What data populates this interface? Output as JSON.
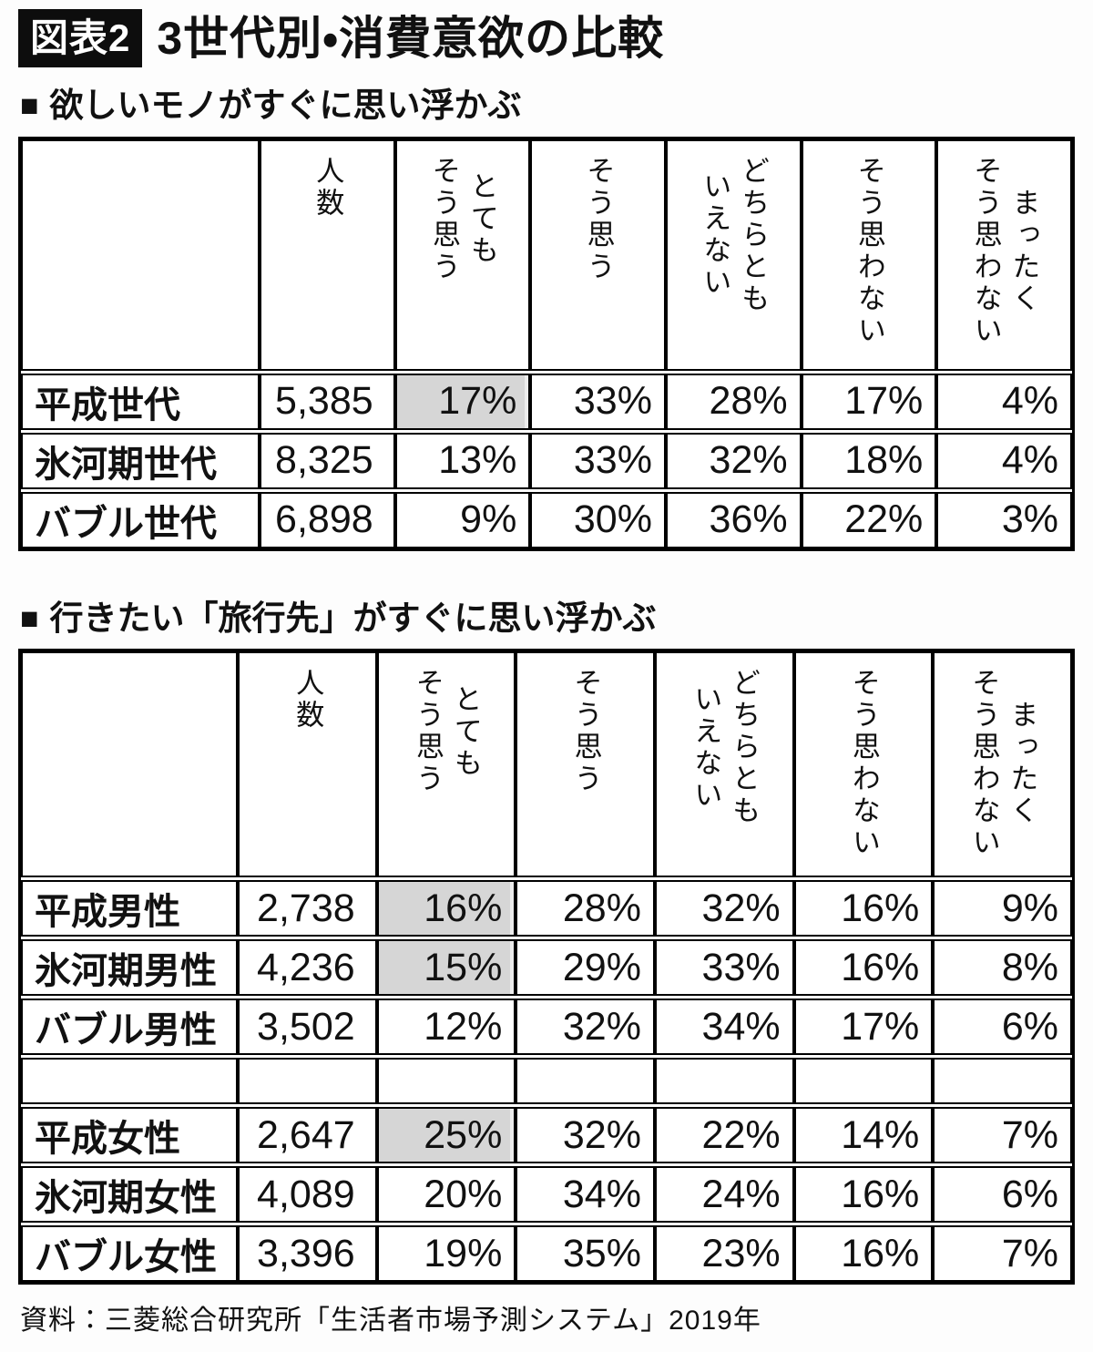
{
  "header": {
    "tag": "図表2",
    "title": "3世代別・消費意欲の比較",
    "bullet": "■"
  },
  "headers_display": [
    "人数",
    "とても\nそう思う",
    "そう思う",
    "どちらとも\nいえない",
    "そう思わない",
    "まったく\nそう思わない"
  ],
  "chart_data": [
    {
      "type": "table",
      "title": "欲しいモノがすぐに思い浮かぶ",
      "columns": [
        "人数",
        "とてもそう思う",
        "そう思う",
        "どちらともいえない",
        "そう思わない",
        "まったくそう思わない"
      ],
      "rows": [
        [
          "平成世代",
          "5,385",
          "17%",
          "33%",
          "28%",
          "17%",
          "4%"
        ],
        [
          "氷河期世代",
          "8,325",
          "13%",
          "33%",
          "32%",
          "18%",
          "4%"
        ],
        [
          "バブル世代",
          "6,898",
          "9%",
          "30%",
          "36%",
          "22%",
          "3%"
        ]
      ],
      "highlight_cells": [
        [
          0,
          2
        ]
      ]
    },
    {
      "type": "table",
      "title": "行きたい「旅行先」がすぐに思い浮かぶ",
      "columns": [
        "人数",
        "とてもそう思う",
        "そう思う",
        "どちらともいえない",
        "そう思わない",
        "まったくそう思わない"
      ],
      "rows": [
        [
          "平成男性",
          "2,738",
          "16%",
          "28%",
          "32%",
          "16%",
          "9%"
        ],
        [
          "氷河期男性",
          "4,236",
          "15%",
          "29%",
          "33%",
          "16%",
          "8%"
        ],
        [
          "バブル男性",
          "3,502",
          "12%",
          "32%",
          "34%",
          "17%",
          "6%"
        ],
        [
          "",
          "",
          "",
          "",
          "",
          "",
          ""
        ],
        [
          "平成女性",
          "2,647",
          "25%",
          "32%",
          "22%",
          "14%",
          "7%"
        ],
        [
          "氷河期女性",
          "4,089",
          "20%",
          "34%",
          "24%",
          "16%",
          "6%"
        ],
        [
          "バブル女性",
          "3,396",
          "19%",
          "35%",
          "23%",
          "16%",
          "7%"
        ]
      ],
      "highlight_cells": [
        [
          0,
          2
        ],
        [
          1,
          2
        ],
        [
          4,
          2
        ]
      ]
    }
  ],
  "footer": {
    "source": "資料：三菱総合研究所「生活者市場予測システム」2019年"
  },
  "style": {
    "highlight_color": "#d6d6d6",
    "tag_bg": "#0d0d0d",
    "tag_fg": "#ffffff"
  }
}
